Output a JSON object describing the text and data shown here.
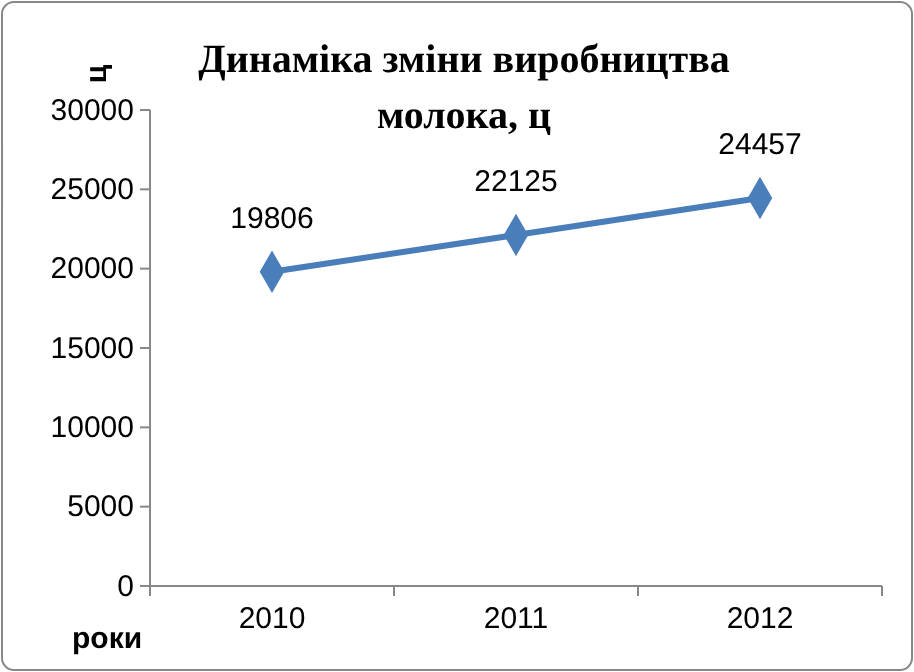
{
  "chart_data": {
    "type": "line",
    "title": "Динаміка зміни виробництва молока, ц",
    "ylabel": "ц",
    "xlabel": "роки",
    "categories": [
      "2010",
      "2011",
      "2012"
    ],
    "series": [
      {
        "color": "#4a7ebb",
        "values": [
          19806,
          22125,
          24457
        ]
      }
    ],
    "ylim": [
      0,
      30000
    ],
    "yticks": [
      0,
      5000,
      10000,
      15000,
      20000,
      25000,
      30000
    ],
    "marker": "diamond",
    "line_style": "solid",
    "data_labels": true
  }
}
